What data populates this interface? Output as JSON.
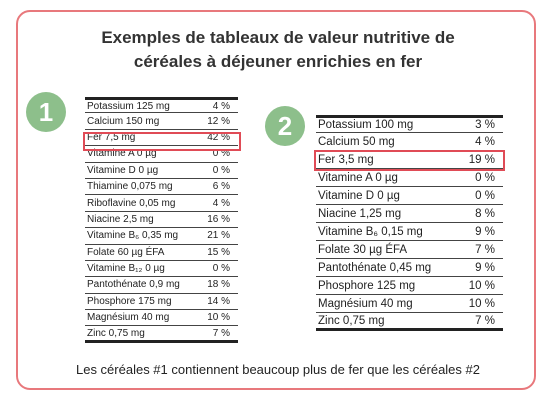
{
  "title_line1": "Exemples de tableaux de valeur nutritive de",
  "title_line2": "céréales à déjeuner enrichies en fer",
  "badge1": "1",
  "badge2": "2",
  "table1": [
    {
      "name": "Potassium 125 mg",
      "value": "4 %"
    },
    {
      "name": "Calcium 150 mg",
      "value": "12 %"
    },
    {
      "name": "Fer 7,5 mg",
      "value": "42 %"
    },
    {
      "name": "Vitamine A 0 µg",
      "value": "0 %"
    },
    {
      "name": "Vitamine D 0 µg",
      "value": "0 %"
    },
    {
      "name": "Thiamine 0,075 mg",
      "value": "6 %"
    },
    {
      "name": "Riboflavine 0,05 mg",
      "value": "4 %"
    },
    {
      "name": "Niacine 2,5 mg",
      "value": "16 %"
    },
    {
      "name": "Vitamine B₆ 0,35 mg",
      "value": "21 %"
    },
    {
      "name": "Folate 60 µg ÉFA",
      "value": "15 %"
    },
    {
      "name": "Vitamine B₁₂ 0 µg",
      "value": "0 %"
    },
    {
      "name": "Pantothénate 0,9 mg",
      "value": "18 %"
    },
    {
      "name": "Phosphore 175 mg",
      "value": "14 %"
    },
    {
      "name": "Magnésium 40 mg",
      "value": "10 %"
    },
    {
      "name": "Zinc 0,75 mg",
      "value": "7 %"
    }
  ],
  "table2": [
    {
      "name": "Potassium 100 mg",
      "value": "3 %"
    },
    {
      "name": "Calcium 50 mg",
      "value": "4 %"
    },
    {
      "name": "Fer 3,5 mg",
      "value": "19 %"
    },
    {
      "name": "Vitamine A 0 µg",
      "value": "0 %"
    },
    {
      "name": "Vitamine D 0 µg",
      "value": "0 %"
    },
    {
      "name": "Niacine 1,25 mg",
      "value": "8 %"
    },
    {
      "name": "Vitamine B₆ 0,15 mg",
      "value": "9 %"
    },
    {
      "name": "Folate 30 µg ÉFA",
      "value": "7 %"
    },
    {
      "name": "Pantothénate 0,45 mg",
      "value": "9 %"
    },
    {
      "name": "Phosphore 125 mg",
      "value": "10 %"
    },
    {
      "name": "Magnésium 40 mg",
      "value": "10 %"
    },
    {
      "name": "Zinc 0,75 mg",
      "value": "7 %"
    }
  ],
  "caption": "Les céréales #1 contiennent beaucoup plus de fer que les céréales #2",
  "colors": {
    "border": "#e8787c",
    "highlight": "#e04b56",
    "badge": "#8dbf8b"
  }
}
